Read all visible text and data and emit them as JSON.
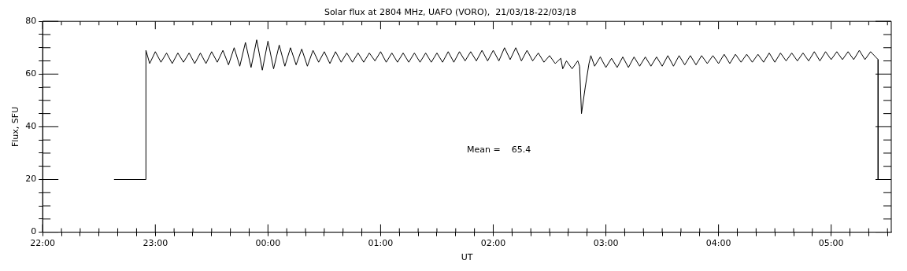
{
  "chart_data": {
    "type": "line",
    "title": "Solar flux at 2804 MHz, UAFO (VORO),  21/03/18-22/03/18",
    "xlabel": "UT",
    "ylabel": "Flux, SFU",
    "color": "#000000",
    "annotations": [
      "Mean =    65.4"
    ],
    "x": [
      "--03-21T22:38",
      "--03-21T22:55",
      "--03-21T22:55",
      "--03-21T22:57",
      "--03-21T23:00",
      "--03-21T23:03",
      "--03-21T23:06",
      "--03-21T23:09",
      "--03-21T23:12",
      "--03-21T23:15",
      "--03-21T23:18",
      "--03-21T23:21",
      "--03-21T23:24",
      "--03-21T23:27",
      "--03-21T23:30",
      "--03-21T23:33",
      "--03-21T23:36",
      "--03-21T23:39",
      "--03-21T23:42",
      "--03-21T23:45",
      "--03-21T23:48",
      "--03-21T23:51",
      "--03-21T23:54",
      "--03-21T23:57",
      "--03-22T00:00",
      "--03-22T00:03",
      "--03-22T00:06",
      "--03-22T00:09",
      "--03-22T00:12",
      "--03-22T00:15",
      "--03-22T00:18",
      "--03-22T00:21",
      "--03-22T00:24",
      "--03-22T00:27",
      "--03-22T00:30",
      "--03-22T00:33",
      "--03-22T00:36",
      "--03-22T00:39",
      "--03-22T00:42",
      "--03-22T00:45",
      "--03-22T00:48",
      "--03-22T00:51",
      "--03-22T00:54",
      "--03-22T00:57",
      "--03-22T01:00",
      "--03-22T01:03",
      "--03-22T01:06",
      "--03-22T01:09",
      "--03-22T01:12",
      "--03-22T01:15",
      "--03-22T01:18",
      "--03-22T01:21",
      "--03-22T01:24",
      "--03-22T01:27",
      "--03-22T01:30",
      "--03-22T01:33",
      "--03-22T01:36",
      "--03-22T01:39",
      "--03-22T01:42",
      "--03-22T01:45",
      "--03-22T01:48",
      "--03-22T01:51",
      "--03-22T01:54",
      "--03-22T01:57",
      "--03-22T02:00",
      "--03-22T02:03",
      "--03-22T02:06",
      "--03-22T02:09",
      "--03-22T02:12",
      "--03-22T02:15",
      "--03-22T02:18",
      "--03-22T02:21",
      "--03-22T02:24",
      "--03-22T02:27",
      "--03-22T02:30",
      "--03-22T02:33",
      "--03-22T02:36",
      "--03-22T02:37",
      "--03-22T02:39",
      "--03-22T02:42",
      "--03-22T02:45",
      "--03-22T02:46",
      "--03-22T02:47",
      "--03-22T02:49",
      "--03-22T02:51",
      "--03-22T02:52",
      "--03-22T02:54",
      "--03-22T02:57",
      "--03-22T03:00",
      "--03-22T03:03",
      "--03-22T03:06",
      "--03-22T03:09",
      "--03-22T03:12",
      "--03-22T03:15",
      "--03-22T03:18",
      "--03-22T03:21",
      "--03-22T03:24",
      "--03-22T03:27",
      "--03-22T03:30",
      "--03-22T03:33",
      "--03-22T03:36",
      "--03-22T03:39",
      "--03-22T03:42",
      "--03-22T03:45",
      "--03-22T03:48",
      "--03-22T03:51",
      "--03-22T03:54",
      "--03-22T03:57",
      "--03-22T04:00",
      "--03-22T04:03",
      "--03-22T04:06",
      "--03-22T04:09",
      "--03-22T04:12",
      "--03-22T04:15",
      "--03-22T04:18",
      "--03-22T04:21",
      "--03-22T04:24",
      "--03-22T04:27",
      "--03-22T04:30",
      "--03-22T04:33",
      "--03-22T04:36",
      "--03-22T04:39",
      "--03-22T04:42",
      "--03-22T04:45",
      "--03-22T04:48",
      "--03-22T04:51",
      "--03-22T04:54",
      "--03-22T04:57",
      "--03-22T05:00",
      "--03-22T05:03",
      "--03-22T05:06",
      "--03-22T05:09",
      "--03-22T05:12",
      "--03-22T05:15",
      "--03-22T05:18",
      "--03-22T05:21",
      "--03-22T05:25",
      "--03-22T05:25"
    ],
    "values": [
      20,
      20,
      69,
      64,
      68.5,
      64.5,
      68,
      64,
      68,
      64.5,
      68,
      64,
      68,
      64,
      68.5,
      64.5,
      69,
      63.5,
      70,
      63,
      72,
      62.5,
      73,
      61.5,
      72.5,
      62,
      71,
      63,
      70,
      63.5,
      69.5,
      63,
      69,
      64.5,
      68.5,
      64,
      68.5,
      64.5,
      68,
      64.5,
      68,
      64.5,
      68,
      65,
      68.5,
      64.5,
      68,
      64.5,
      68,
      64.5,
      68,
      64.5,
      68,
      64.5,
      68,
      64.5,
      68.5,
      64.5,
      68.5,
      65,
      68.5,
      65,
      69,
      65,
      69,
      65,
      70,
      65.5,
      70,
      65,
      69,
      65,
      68,
      64.5,
      67,
      64,
      66,
      62,
      65,
      62,
      65,
      63,
      45,
      55,
      64,
      67,
      63,
      66.5,
      62.5,
      66,
      62.5,
      66.5,
      62.5,
      66.5,
      63,
      66.5,
      63,
      66.5,
      63,
      67,
      63,
      67,
      63.5,
      67,
      63.5,
      67,
      64,
      67,
      64,
      67.5,
      64,
      67.5,
      64.5,
      67.5,
      64.5,
      67.5,
      64.5,
      68,
      64.5,
      68,
      65,
      68,
      65,
      68,
      65,
      68.5,
      65,
      68.5,
      65.5,
      68.5,
      65.5,
      68.5,
      65.5,
      69,
      65.5,
      68.5,
      65.5,
      20
    ],
    "xlim": [
      "--03-21T22:00",
      "--03-22T05:32"
    ],
    "xticks": [
      {
        "value": "--03-21T22:00",
        "label": "22:00"
      },
      {
        "value": "--03-21T22:10",
        "label": null
      },
      {
        "value": "--03-21T22:20",
        "label": null
      },
      {
        "value": "--03-21T22:30",
        "label": null
      },
      {
        "value": "--03-21T22:40",
        "label": null
      },
      {
        "value": "--03-21T22:50",
        "label": null
      },
      {
        "value": "--03-21T23:00",
        "label": "23:00"
      },
      {
        "value": "--03-21T23:10",
        "label": null
      },
      {
        "value": "--03-21T23:20",
        "label": null
      },
      {
        "value": "--03-21T23:30",
        "label": null
      },
      {
        "value": "--03-21T23:40",
        "label": null
      },
      {
        "value": "--03-21T23:50",
        "label": null
      },
      {
        "value": "--03-22T00:00",
        "label": "00:00"
      },
      {
        "value": "--03-22T00:10",
        "label": null
      },
      {
        "value": "--03-22T00:20",
        "label": null
      },
      {
        "value": "--03-22T00:30",
        "label": null
      },
      {
        "value": "--03-22T00:40",
        "label": null
      },
      {
        "value": "--03-22T00:50",
        "label": null
      },
      {
        "value": "--03-22T01:00",
        "label": "01:00"
      },
      {
        "value": "--03-22T01:10",
        "label": null
      },
      {
        "value": "--03-22T01:20",
        "label": null
      },
      {
        "value": "--03-22T01:30",
        "label": null
      },
      {
        "value": "--03-22T01:40",
        "label": null
      },
      {
        "value": "--03-22T01:50",
        "label": null
      },
      {
        "value": "--03-22T02:00",
        "label": "02:00"
      },
      {
        "value": "--03-22T02:10",
        "label": null
      },
      {
        "value": "--03-22T02:20",
        "label": null
      },
      {
        "value": "--03-22T02:30",
        "label": null
      },
      {
        "value": "--03-22T02:40",
        "label": null
      },
      {
        "value": "--03-22T02:50",
        "label": null
      },
      {
        "value": "--03-22T03:00",
        "label": "03:00"
      },
      {
        "value": "--03-22T03:10",
        "label": null
      },
      {
        "value": "--03-22T03:20",
        "label": null
      },
      {
        "value": "--03-22T03:30",
        "label": null
      },
      {
        "value": "--03-22T03:40",
        "label": null
      },
      {
        "value": "--03-22T03:50",
        "label": null
      },
      {
        "value": "--03-22T04:00",
        "label": "04:00"
      },
      {
        "value": "--03-22T04:10",
        "label": null
      },
      {
        "value": "--03-22T04:20",
        "label": null
      },
      {
        "value": "--03-22T04:30",
        "label": null
      },
      {
        "value": "--03-22T04:40",
        "label": null
      },
      {
        "value": "--03-22T04:50",
        "label": null
      },
      {
        "value": "--03-22T05:00",
        "label": "05:00"
      },
      {
        "value": "--03-22T05:10",
        "label": null
      },
      {
        "value": "--03-22T05:20",
        "label": null
      },
      {
        "value": "--03-22T05:30",
        "label": null
      }
    ],
    "ylim": [
      0,
      80
    ],
    "yticks": [
      0,
      {
        "value": 5,
        "label": null
      },
      {
        "value": 10,
        "label": null
      },
      {
        "value": 15,
        "label": null
      },
      20,
      {
        "value": 25,
        "label": null
      },
      {
        "value": 30,
        "label": null
      },
      {
        "value": 35,
        "label": null
      },
      40,
      {
        "value": 45,
        "label": null
      },
      {
        "value": 50,
        "label": null
      },
      {
        "value": 55,
        "label": null
      },
      60,
      {
        "value": 65,
        "label": null
      },
      {
        "value": 70,
        "label": null
      },
      {
        "value": 75,
        "label": null
      },
      80
    ],
    "grid": false,
    "legend": false
  }
}
